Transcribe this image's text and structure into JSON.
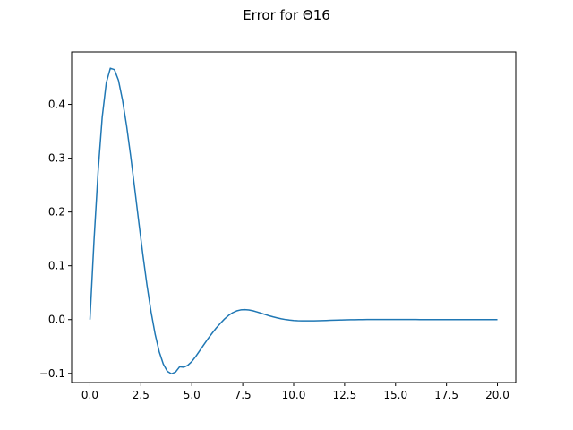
{
  "chart_data": {
    "type": "line",
    "title": "Error for Θ16",
    "xlabel": "",
    "ylabel": "",
    "xlim": [
      -0.9,
      20.9
    ],
    "ylim": [
      -0.117,
      0.4975
    ],
    "grid": false,
    "xticks": [
      0.0,
      2.5,
      5.0,
      7.5,
      10.0,
      12.5,
      15.0,
      17.5,
      20.0
    ],
    "xtick_labels": [
      "0.0",
      "2.5",
      "5.0",
      "7.5",
      "10.0",
      "12.5",
      "15.0",
      "17.5",
      "20.0"
    ],
    "yticks": [
      -0.1,
      0.0,
      0.1,
      0.2,
      0.3,
      0.4
    ],
    "ytick_labels": [
      "−0.1",
      "0.0",
      "0.1",
      "0.2",
      "0.3",
      "0.4"
    ],
    "series": [
      {
        "color": "#1f77b4",
        "x": [
          0.0,
          0.2,
          0.4,
          0.6,
          0.8,
          1.0,
          1.2,
          1.4,
          1.6,
          1.8,
          2.0,
          2.2,
          2.4,
          2.6,
          2.8,
          3.0,
          3.2,
          3.4,
          3.6,
          3.8,
          4.0,
          4.2,
          4.4,
          4.6,
          4.8,
          5.0,
          5.2,
          5.4,
          5.6,
          5.8,
          6.0,
          6.2,
          6.4,
          6.6,
          6.8,
          7.0,
          7.2,
          7.4,
          7.6,
          7.8,
          8.0,
          8.2,
          8.4,
          8.6,
          8.8,
          9.0,
          9.2,
          9.4,
          9.6,
          9.8,
          10.0,
          10.2,
          10.4,
          10.6,
          10.8,
          11.0,
          11.2,
          11.4,
          11.6,
          11.8,
          12.0,
          12.2,
          12.4,
          12.6,
          12.8,
          13.0,
          13.2,
          13.4,
          13.6,
          13.8,
          14.0,
          14.2,
          14.4,
          14.6,
          14.8,
          15.0,
          15.2,
          15.4,
          15.6,
          15.8,
          16.0,
          16.2,
          16.4,
          16.6,
          16.8,
          17.0,
          17.2,
          17.4,
          17.6,
          17.8,
          18.0,
          18.2,
          18.4,
          18.6,
          18.8,
          19.0,
          19.2,
          19.4,
          19.6,
          19.8,
          20.0
        ],
        "y": [
          0.0,
          0.1476,
          0.2753,
          0.3759,
          0.4399,
          0.4672,
          0.4647,
          0.4448,
          0.4076,
          0.3598,
          0.3036,
          0.2426,
          0.1803,
          0.1199,
          0.0638,
          0.0143,
          -0.0272,
          -0.0597,
          -0.0826,
          -0.0961,
          -0.1008,
          -0.0976,
          -0.0877,
          -0.0885,
          -0.0851,
          -0.0779,
          -0.0682,
          -0.0572,
          -0.0461,
          -0.0353,
          -0.0252,
          -0.0156,
          -0.0071,
          0.0009,
          0.0076,
          0.0127,
          0.0162,
          0.018,
          0.0185,
          0.0179,
          0.0164,
          0.0143,
          0.0119,
          0.0095,
          0.0071,
          0.005,
          0.0031,
          0.0014,
          0.0001,
          -0.0009,
          -0.0016,
          -0.0021,
          -0.0023,
          -0.0024,
          -0.0024,
          -0.0023,
          -0.0021,
          -0.0019,
          -0.0016,
          -0.0013,
          -0.0011,
          -0.0009,
          -0.0007,
          -0.0005,
          -0.0003,
          -0.0002,
          -0.0001,
          0.0,
          0.0001,
          0.0001,
          0.0002,
          0.0002,
          0.0002,
          0.0002,
          0.0002,
          0.0002,
          0.0001,
          0.0001,
          0.0001,
          0.0001,
          0.0001,
          0.0,
          0.0,
          0.0,
          0.0,
          0.0,
          0.0,
          0.0,
          0.0,
          0.0,
          0.0,
          0.0,
          0.0,
          0.0,
          0.0,
          0.0,
          0.0,
          0.0,
          0.0,
          0.0,
          0.0
        ]
      }
    ]
  }
}
